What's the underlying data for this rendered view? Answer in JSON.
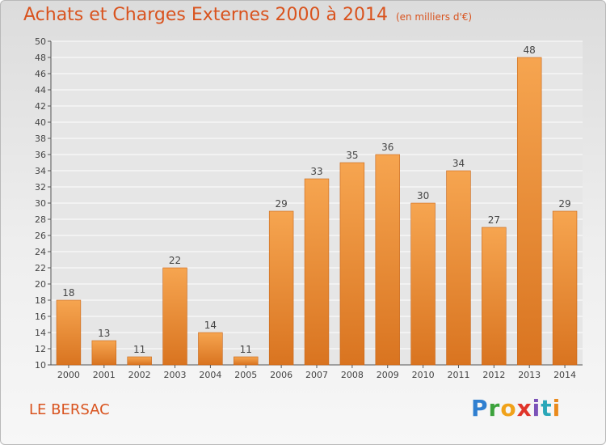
{
  "header": {
    "title": "Achats et Charges Externes 2000 à 2014",
    "subtitle": "(en milliers d'€)"
  },
  "footer": {
    "place": "LE BERSAC",
    "brand": "Proxiti"
  },
  "colors": {
    "title": "#d9531e",
    "bar_top": "#f6a550",
    "bar_bottom": "#d97420",
    "grid": "#ffffff"
  },
  "chart_data": {
    "type": "bar",
    "categories": [
      "2000",
      "2001",
      "2002",
      "2003",
      "2004",
      "2005",
      "2006",
      "2007",
      "2008",
      "2009",
      "2010",
      "2011",
      "2012",
      "2013",
      "2014"
    ],
    "values": [
      18,
      13,
      11,
      22,
      14,
      11,
      29,
      33,
      35,
      36,
      30,
      34,
      27,
      48,
      29
    ],
    "title": "Achats et Charges Externes 2000 à 2014",
    "subtitle": "(en milliers d'€)",
    "xlabel": "",
    "ylabel": "",
    "ylim": [
      10,
      50
    ],
    "ytick_step": 2,
    "grid": true,
    "data_labels": true
  }
}
